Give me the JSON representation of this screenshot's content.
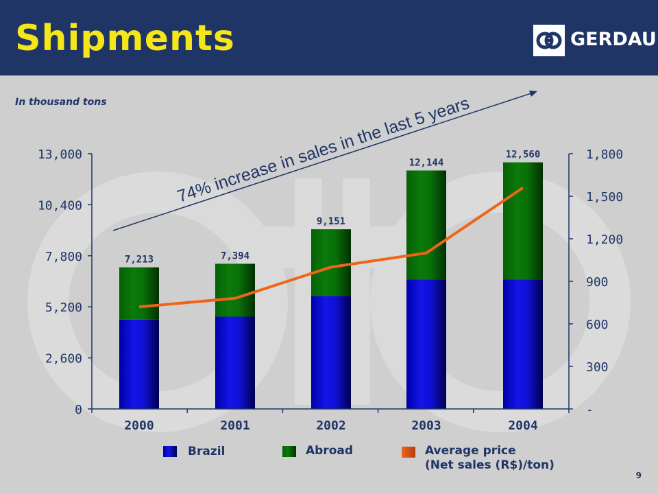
{
  "header": {
    "title": "Shipments",
    "logo_text": "GERDAU"
  },
  "unit_note": "In thousand tons",
  "annotation": "74% increase in sales in the last 5 years",
  "page_number": "9",
  "colors": {
    "header_bg": "#1f3566",
    "title": "#f5e61a",
    "brazil": "#1414e6",
    "abroad": "#0a7a0a",
    "price_line": "#f06418",
    "text": "#1f3566"
  },
  "chart_data": {
    "type": "bar",
    "stacked": true,
    "categories": [
      "2000",
      "2001",
      "2002",
      "2003",
      "2004"
    ],
    "series": [
      {
        "name": "Brazil",
        "values": [
          4550,
          4700,
          5750,
          6600,
          6600
        ]
      },
      {
        "name": "Abroad",
        "values": [
          2663,
          2694,
          3401,
          5544,
          5960
        ]
      }
    ],
    "totals": [
      7213,
      7394,
      9151,
      12144,
      12560
    ],
    "total_labels": [
      "7,213",
      "7,394",
      "9,151",
      "12,144",
      "12,560"
    ],
    "line_series": {
      "name": "Average price\n(Net sales (R$)/ton)",
      "axis": "right",
      "values": [
        720,
        780,
        1000,
        1100,
        1560
      ]
    },
    "left_axis": {
      "ylim": [
        0,
        13000
      ],
      "ticks": [
        0,
        2600,
        5200,
        7800,
        10400,
        13000
      ],
      "tick_labels": [
        "0",
        "2,600",
        "5,200",
        "7,800",
        "10,400",
        "13,000"
      ]
    },
    "right_axis": {
      "ylim": [
        0,
        1800
      ],
      "ticks": [
        0,
        300,
        600,
        900,
        1200,
        1500,
        1800
      ],
      "tick_labels": [
        "-",
        "300",
        "600",
        "900",
        "1,200",
        "1,500",
        "1,800"
      ]
    },
    "legend": [
      {
        "label": "Brazil"
      },
      {
        "label": "Abroad"
      },
      {
        "label_line1": "Average price",
        "label_line2": "(Net sales (R$)/ton)"
      }
    ]
  }
}
